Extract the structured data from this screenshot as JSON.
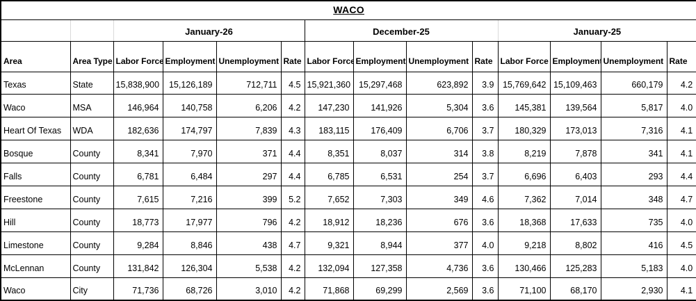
{
  "title": "WACO",
  "table": {
    "row_headers": [
      "Area",
      "Area Type"
    ],
    "months": [
      "January-26",
      "December-25",
      "January-25"
    ],
    "sub_columns": [
      "Labor Force",
      "Employment",
      "Unemployment",
      "Rate"
    ],
    "rows": [
      {
        "area": "Texas",
        "area_type": "State",
        "periods": [
          [
            "15,838,900",
            "15,126,189",
            "712,711",
            "4.5"
          ],
          [
            "15,921,360",
            "15,297,468",
            "623,892",
            "3.9"
          ],
          [
            "15,769,642",
            "15,109,463",
            "660,179",
            "4.2"
          ]
        ]
      },
      {
        "area": "Waco",
        "area_type": "MSA",
        "periods": [
          [
            "146,964",
            "140,758",
            "6,206",
            "4.2"
          ],
          [
            "147,230",
            "141,926",
            "5,304",
            "3.6"
          ],
          [
            "145,381",
            "139,564",
            "5,817",
            "4.0"
          ]
        ]
      },
      {
        "area": "Heart Of Texas",
        "area_type": "WDA",
        "periods": [
          [
            "182,636",
            "174,797",
            "7,839",
            "4.3"
          ],
          [
            "183,115",
            "176,409",
            "6,706",
            "3.7"
          ],
          [
            "180,329",
            "173,013",
            "7,316",
            "4.1"
          ]
        ]
      },
      {
        "area": "Bosque",
        "area_type": "County",
        "periods": [
          [
            "8,341",
            "7,970",
            "371",
            "4.4"
          ],
          [
            "8,351",
            "8,037",
            "314",
            "3.8"
          ],
          [
            "8,219",
            "7,878",
            "341",
            "4.1"
          ]
        ]
      },
      {
        "area": "Falls",
        "area_type": "County",
        "periods": [
          [
            "6,781",
            "6,484",
            "297",
            "4.4"
          ],
          [
            "6,785",
            "6,531",
            "254",
            "3.7"
          ],
          [
            "6,696",
            "6,403",
            "293",
            "4.4"
          ]
        ]
      },
      {
        "area": "Freestone",
        "area_type": "County",
        "periods": [
          [
            "7,615",
            "7,216",
            "399",
            "5.2"
          ],
          [
            "7,652",
            "7,303",
            "349",
            "4.6"
          ],
          [
            "7,362",
            "7,014",
            "348",
            "4.7"
          ]
        ]
      },
      {
        "area": "Hill",
        "area_type": "County",
        "periods": [
          [
            "18,773",
            "17,977",
            "796",
            "4.2"
          ],
          [
            "18,912",
            "18,236",
            "676",
            "3.6"
          ],
          [
            "18,368",
            "17,633",
            "735",
            "4.0"
          ]
        ]
      },
      {
        "area": "Limestone",
        "area_type": "County",
        "periods": [
          [
            "9,284",
            "8,846",
            "438",
            "4.7"
          ],
          [
            "9,321",
            "8,944",
            "377",
            "4.0"
          ],
          [
            "9,218",
            "8,802",
            "416",
            "4.5"
          ]
        ]
      },
      {
        "area": "McLennan",
        "area_type": "County",
        "periods": [
          [
            "131,842",
            "126,304",
            "5,538",
            "4.2"
          ],
          [
            "132,094",
            "127,358",
            "4,736",
            "3.6"
          ],
          [
            "130,466",
            "125,283",
            "5,183",
            "4.0"
          ]
        ]
      },
      {
        "area": "Waco",
        "area_type": "City",
        "periods": [
          [
            "71,736",
            "68,726",
            "3,010",
            "4.2"
          ],
          [
            "71,868",
            "69,299",
            "2,569",
            "3.6"
          ],
          [
            "71,100",
            "68,170",
            "2,930",
            "4.1"
          ]
        ]
      }
    ],
    "border_color": "#000000",
    "grid_light_color": "#d9d9d9"
  }
}
